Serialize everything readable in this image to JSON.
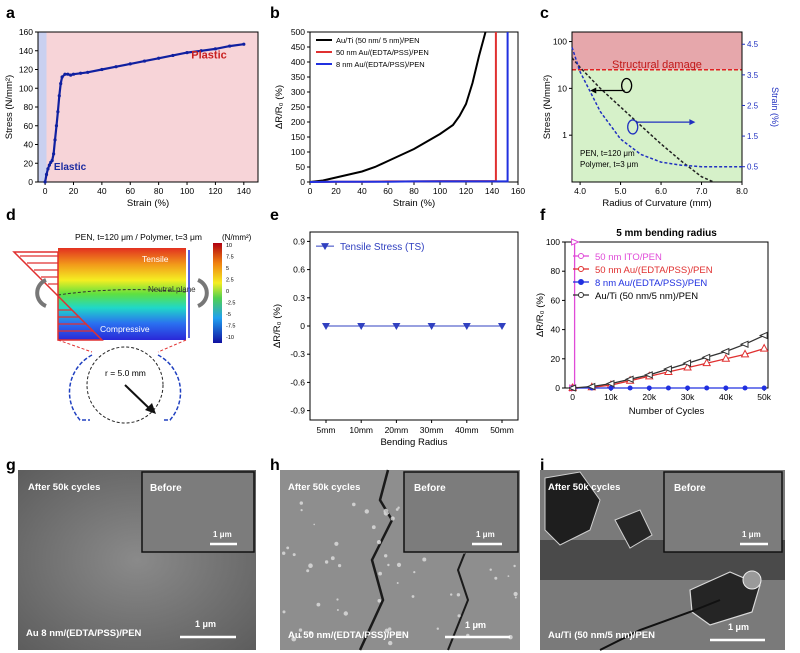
{
  "panel_labels": [
    "a",
    "b",
    "c",
    "d",
    "e",
    "f",
    "g",
    "h",
    "i"
  ],
  "colors": {
    "elastic": "#c9d0f0",
    "plastic": "#f7d4d8",
    "damage": "#e6a7ab",
    "safe": "#d6f1c9",
    "gold": "#000000",
    "ito": "#e04bd8",
    "au50": "#e03030",
    "au8": "#2030e0"
  },
  "chart_data": [
    {
      "id": "a",
      "type": "line",
      "xlabel": "Strain (%)",
      "ylabel": "Stress (N/mm²)",
      "xlim": [
        -5,
        150
      ],
      "ylim": [
        0,
        160
      ],
      "xticks": [
        0,
        20,
        40,
        60,
        80,
        100,
        120,
        140
      ],
      "yticks": [
        0,
        20,
        40,
        60,
        80,
        100,
        120,
        140,
        160
      ],
      "annotations": [
        "Elastic",
        "Plastic"
      ],
      "x": [
        0,
        1,
        2,
        3,
        4,
        5,
        6,
        7,
        8,
        9,
        10,
        11,
        12,
        14,
        16,
        18,
        20,
        25,
        30,
        40,
        50,
        60,
        70,
        80,
        90,
        100,
        110,
        120,
        130,
        140
      ],
      "y": [
        0,
        8,
        14,
        18,
        21,
        23,
        30,
        45,
        60,
        75,
        92,
        105,
        112,
        115,
        115,
        114,
        115,
        116,
        117,
        120,
        123,
        126,
        129,
        132,
        135,
        138,
        140,
        142,
        145,
        147
      ]
    },
    {
      "id": "b",
      "type": "line",
      "xlabel": "Strain (%)",
      "ylabel": "ΔR/R₀ (%)",
      "xlim": [
        0,
        160
      ],
      "ylim": [
        0,
        500
      ],
      "xticks": [
        0,
        20,
        40,
        60,
        80,
        100,
        120,
        140,
        160
      ],
      "yticks": [
        0,
        50,
        100,
        150,
        200,
        250,
        300,
        350,
        400,
        450,
        500
      ],
      "series": [
        {
          "name": "Au/Ti (50 nm/ 5 nm)/PEN",
          "color": "#000000",
          "x": [
            0,
            10,
            20,
            30,
            40,
            50,
            60,
            70,
            80,
            90,
            100,
            110,
            115,
            120,
            125,
            130,
            135
          ],
          "y": [
            0,
            5,
            15,
            25,
            35,
            50,
            70,
            90,
            110,
            135,
            160,
            190,
            220,
            260,
            330,
            420,
            500
          ]
        },
        {
          "name": "50 nm Au/(EDTA/PSS)/PEN",
          "color": "#e03030",
          "x": [
            0,
            20,
            40,
            60,
            80,
            100,
            120,
            140,
            143,
            143
          ],
          "y": [
            0,
            1,
            1,
            2,
            2,
            3,
            3,
            3,
            3,
            500
          ]
        },
        {
          "name": "8 nm Au/(EDTA/PSS)/PEN",
          "color": "#2030e0",
          "x": [
            0,
            20,
            40,
            60,
            80,
            100,
            120,
            140,
            152,
            152
          ],
          "y": [
            0,
            1,
            1,
            1,
            2,
            2,
            2,
            2,
            2,
            500
          ]
        }
      ]
    },
    {
      "id": "c",
      "type": "line",
      "xlabel": "Radius of Curvature (mm)",
      "ylabel": "Stress (N/mm²)",
      "y2label": "Strain (%)",
      "xlim": [
        3.8,
        8.0
      ],
      "ylim": [
        0.1,
        160
      ],
      "y2lim": [
        0,
        4.9
      ],
      "xticks": [
        4.0,
        5.0,
        6.0,
        7.0,
        8.0
      ],
      "yticks": [
        1,
        10,
        100
      ],
      "y2ticks": [
        0.5,
        1.5,
        2.5,
        3.5,
        4.5
      ],
      "annotations": [
        "Structural damage",
        "PEN, t=120 μm",
        "Polymer, t=3 μm"
      ],
      "damage_threshold": 25,
      "series": [
        {
          "name": "Stress",
          "color": "#222222",
          "x": [
            3.8,
            4.0,
            4.5,
            5.0,
            5.5,
            6.0,
            6.5,
            7.0,
            7.3
          ],
          "y": [
            45,
            28,
            10,
            4,
            1.6,
            0.65,
            0.28,
            0.13,
            0.1
          ]
        },
        {
          "name": "Strain",
          "color": "#2030c0",
          "axis": "right",
          "x": [
            3.8,
            4.0,
            4.5,
            5.0,
            5.5,
            6.0,
            6.5,
            7.0,
            7.5,
            8.0
          ],
          "y": [
            4.4,
            3.6,
            2.3,
            1.4,
            0.9,
            0.65,
            0.55,
            0.5,
            0.5,
            0.5
          ]
        }
      ]
    },
    {
      "id": "e",
      "type": "line",
      "xlabel": "Bending Radius",
      "ylabel": "ΔR/R₀ (%)",
      "ylim": [
        -1,
        1
      ],
      "yticks": [
        -0.9,
        -0.6,
        -0.3,
        0,
        0.3,
        0.6,
        0.9
      ],
      "categories": [
        "5mm",
        "10mm",
        "20mm",
        "30mm",
        "40mm",
        "50mm"
      ],
      "series": [
        {
          "name": "Tensile Stress (TS)",
          "color": "#3040c0",
          "values": [
            0,
            0,
            0,
            0,
            0,
            0
          ]
        }
      ]
    },
    {
      "id": "f",
      "type": "line",
      "title": "5 mm bending radius",
      "xlabel": "Number of Cycles",
      "ylabel": "ΔR/R₀ (%)",
      "xlim": [
        -2,
        51
      ],
      "ylim": [
        0,
        100
      ],
      "xticks": [
        0,
        10,
        20,
        30,
        40,
        50
      ],
      "xticklabels": [
        "0",
        "10k",
        "20k",
        "30k",
        "40k",
        "50k"
      ],
      "yticks": [
        0,
        20,
        40,
        60,
        80,
        100
      ],
      "series": [
        {
          "name": "50 nm ITO/PEN",
          "color": "#e04bd8",
          "x": [
            0,
            0.5,
            0.5
          ],
          "y": [
            0,
            0,
            100
          ]
        },
        {
          "name": "50 nm Au/(EDTA/PSS)/PEN",
          "color": "#e03030",
          "x": [
            0,
            5,
            10,
            15,
            20,
            25,
            30,
            35,
            40,
            45,
            50
          ],
          "y": [
            0,
            0.5,
            2,
            5,
            8,
            11,
            14,
            17,
            20,
            23,
            27
          ]
        },
        {
          "name": "8 nm Au/(EDTA/PSS)/PEN",
          "color": "#2030e0",
          "x": [
            0,
            5,
            10,
            15,
            20,
            25,
            30,
            35,
            40,
            45,
            50
          ],
          "y": [
            0,
            0,
            0,
            0,
            0,
            0,
            0,
            0,
            0,
            0,
            0
          ]
        },
        {
          "name": "Au/Ti (50 nm/5 nm)/PEN",
          "color": "#333333",
          "x": [
            0,
            5,
            10,
            15,
            20,
            25,
            30,
            35,
            40,
            45,
            50
          ],
          "y": [
            0,
            1,
            3,
            6,
            9,
            13,
            17,
            21,
            25,
            30,
            36
          ]
        }
      ]
    }
  ],
  "d": {
    "title": "PEN, t=120 μm / Polymer, t=3 μm",
    "tensile": "Tensile",
    "neutral": "Neutral plane",
    "compressive": "Compressive",
    "radius": "r = 5.0 mm",
    "cbar_title": "(N/mm²)",
    "cbar_ticks": [
      "10",
      "7.5",
      "5",
      "2.5",
      "0",
      "-2.5",
      "-5",
      "-7.5",
      "-10"
    ]
  },
  "sem": [
    {
      "id": "g",
      "top": "After 50k cycles",
      "inset": "Before",
      "inset_scale": "1 μm",
      "scale": "1 μm",
      "caption": "Au 8 nm/(EDTA/PSS)/PEN"
    },
    {
      "id": "h",
      "top": "After 50k cycles",
      "inset": "Before",
      "inset_scale": "1 μm",
      "scale": "1 μm",
      "caption": "Au 50 nm/(EDTA/PSS)/PEN"
    },
    {
      "id": "i",
      "top": "After 50k cycles",
      "inset": "Before",
      "inset_scale": "1 μm",
      "scale": "1 μm",
      "caption": "Au/Ti (50 nm/5 nm)/PEN"
    }
  ]
}
